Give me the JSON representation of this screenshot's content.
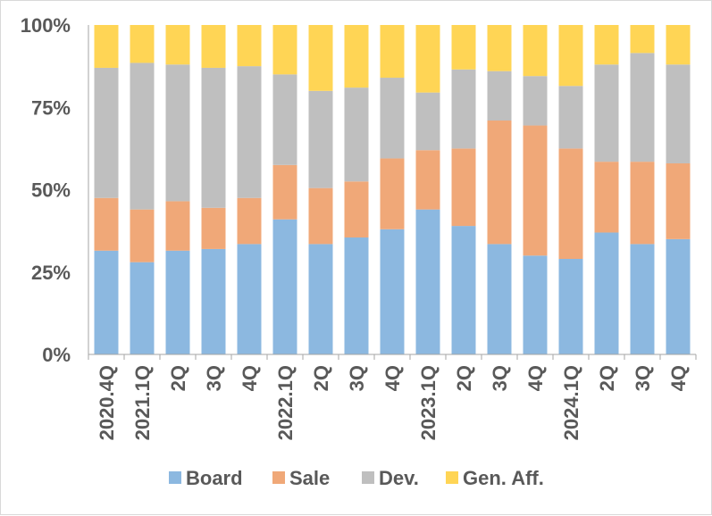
{
  "chart_data": {
    "type": "bar",
    "stacked": true,
    "title": "",
    "xlabel": "",
    "ylabel": "",
    "ylim": [
      0,
      100
    ],
    "y_ticks": [
      0,
      25,
      50,
      75,
      100
    ],
    "y_tick_labels": [
      "0%",
      "25%",
      "50%",
      "75%",
      "100%"
    ],
    "categories": [
      "2020.4Q",
      "2021.1Q",
      "2Q",
      "3Q",
      "4Q",
      "2022.1Q",
      "2Q",
      "3Q",
      "4Q",
      "2023.1Q",
      "2Q",
      "3Q",
      "4Q",
      "2024.1Q",
      "2Q",
      "3Q",
      "4Q"
    ],
    "legend_position": "bottom",
    "series": [
      {
        "name": "Board",
        "color": "#8cb8e0",
        "values": [
          31.5,
          28,
          31.5,
          32,
          33.5,
          41,
          33.5,
          35.5,
          38,
          44,
          39,
          33.5,
          30,
          29,
          37,
          33.5,
          35
        ]
      },
      {
        "name": "Sale",
        "color": "#f0a878",
        "values": [
          16,
          16,
          15,
          12.5,
          14,
          16.5,
          17,
          17,
          21.5,
          18,
          23.5,
          37.5,
          39.5,
          33.5,
          21.5,
          25,
          23
        ]
      },
      {
        "name": "Dev.",
        "color": "#bfbfbf",
        "values": [
          39.5,
          44.5,
          41.5,
          42.5,
          40,
          27.5,
          29.5,
          28.5,
          24.5,
          17.5,
          24,
          15,
          15,
          19,
          29.5,
          33,
          30
        ]
      },
      {
        "name": "Gen. Aff.",
        "color": "#ffd555",
        "values": [
          13,
          11.5,
          12,
          13,
          12.5,
          15,
          20,
          19,
          16,
          20.5,
          13.5,
          14,
          15.5,
          18.5,
          12,
          8.5,
          12
        ]
      }
    ]
  }
}
